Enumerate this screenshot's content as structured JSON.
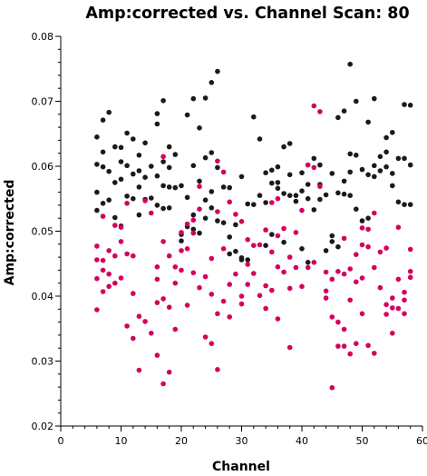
{
  "chart_data": {
    "type": "scatter",
    "title": "Amp:corrected vs. Channel Scan: 80",
    "xlabel": "Channel",
    "ylabel": "Amp:corrected",
    "xlim": [
      0,
      60
    ],
    "ylim": [
      0.02,
      0.08
    ],
    "x_ticks": [
      "0",
      "10",
      "20",
      "30",
      "40",
      "50",
      "60"
    ],
    "y_ticks": [
      "0.02",
      "0.03",
      "0.04",
      "0.05",
      "0.06",
      "0.07",
      "0.08"
    ],
    "grid": false,
    "colors": {
      "series_black": "#1a1a1a",
      "series_magenta": "#d4005f",
      "axis": "#000000"
    },
    "series": [
      {
        "color": "#1a1a1a",
        "points": [
          [
            6,
            0.0645
          ],
          [
            6,
            0.0603
          ],
          [
            6,
            0.056
          ],
          [
            6,
            0.0532
          ],
          [
            7,
            0.0622
          ],
          [
            7,
            0.0671
          ],
          [
            7,
            0.0599
          ],
          [
            7,
            0.0543
          ],
          [
            8,
            0.0683
          ],
          [
            8,
            0.0592
          ],
          [
            8,
            0.0548
          ],
          [
            9,
            0.063
          ],
          [
            9,
            0.0575
          ],
          [
            9,
            0.0521
          ],
          [
            10,
            0.0629
          ],
          [
            10,
            0.0607
          ],
          [
            10,
            0.058
          ],
          [
            10,
            0.0508
          ],
          [
            11,
            0.0651
          ],
          [
            11,
            0.0601
          ],
          [
            11,
            0.0554
          ],
          [
            12,
            0.0642
          ],
          [
            12,
            0.0588
          ],
          [
            12,
            0.055
          ],
          [
            13,
            0.0617
          ],
          [
            13,
            0.0593
          ],
          [
            13,
            0.0568
          ],
          [
            13,
            0.0525
          ],
          [
            14,
            0.0636
          ],
          [
            14,
            0.0583
          ],
          [
            14,
            0.0549
          ],
          [
            15,
            0.06
          ],
          [
            15,
            0.0551
          ],
          [
            16,
            0.0681
          ],
          [
            16,
            0.0665
          ],
          [
            16,
            0.0585
          ],
          [
            16,
            0.054
          ],
          [
            17,
            0.0701
          ],
          [
            17,
            0.0607
          ],
          [
            17,
            0.057
          ],
          [
            17,
            0.0535
          ],
          [
            18,
            0.063
          ],
          [
            18,
            0.0598
          ],
          [
            18,
            0.0568
          ],
          [
            18,
            0.0536
          ],
          [
            19,
            0.0618
          ],
          [
            19,
            0.0567
          ],
          [
            20,
            0.057
          ],
          [
            20,
            0.0495
          ],
          [
            20,
            0.0485
          ],
          [
            21,
            0.0679
          ],
          [
            21,
            0.0552
          ],
          [
            21,
            0.0507
          ],
          [
            22,
            0.0704
          ],
          [
            22,
            0.0601
          ],
          [
            22,
            0.0525
          ],
          [
            22,
            0.0503
          ],
          [
            23,
            0.0659
          ],
          [
            23,
            0.0577
          ],
          [
            23,
            0.0497
          ],
          [
            24,
            0.0705
          ],
          [
            24,
            0.0613
          ],
          [
            24,
            0.0548
          ],
          [
            24,
            0.052
          ],
          [
            25,
            0.0729
          ],
          [
            25,
            0.0621
          ],
          [
            25,
            0.0561
          ],
          [
            25,
            0.0536
          ],
          [
            26,
            0.0746
          ],
          [
            26,
            0.0598
          ],
          [
            26,
            0.0516
          ],
          [
            27,
            0.0568
          ],
          [
            27,
            0.0513
          ],
          [
            28,
            0.0567
          ],
          [
            28,
            0.0491
          ],
          [
            28,
            0.0465
          ],
          [
            29,
            0.051
          ],
          [
            29,
            0.0469
          ],
          [
            30,
            0.0584
          ],
          [
            30,
            0.0459
          ],
          [
            30,
            0.0456
          ],
          [
            31,
            0.0542
          ],
          [
            31,
            0.0456
          ],
          [
            32,
            0.0676
          ],
          [
            32,
            0.0541
          ],
          [
            33,
            0.0555
          ],
          [
            33,
            0.0642
          ],
          [
            34,
            0.059
          ],
          [
            34,
            0.0544
          ],
          [
            34,
            0.0478
          ],
          [
            35,
            0.0594
          ],
          [
            35,
            0.0574
          ],
          [
            35,
            0.0495
          ],
          [
            36,
            0.0599
          ],
          [
            36,
            0.0575
          ],
          [
            36,
            0.0566
          ],
          [
            37,
            0.063
          ],
          [
            37,
            0.0558
          ],
          [
            37,
            0.0483
          ],
          [
            38,
            0.0635
          ],
          [
            38,
            0.0587
          ],
          [
            38,
            0.0555
          ],
          [
            39,
            0.0555
          ],
          [
            39,
            0.0546
          ],
          [
            40,
            0.059
          ],
          [
            40,
            0.0562
          ],
          [
            40,
            0.0473
          ],
          [
            41,
            0.0572
          ],
          [
            41,
            0.055
          ],
          [
            41,
            0.0452
          ],
          [
            42,
            0.0612
          ],
          [
            42,
            0.0533
          ],
          [
            43,
            0.0602
          ],
          [
            43,
            0.0572
          ],
          [
            43,
            0.0549
          ],
          [
            44,
            0.0556
          ],
          [
            44,
            0.047
          ],
          [
            45,
            0.0589
          ],
          [
            45,
            0.0493
          ],
          [
            45,
            0.0484
          ],
          [
            46,
            0.0675
          ],
          [
            46,
            0.0559
          ],
          [
            46,
            0.0476
          ],
          [
            47,
            0.0685
          ],
          [
            47,
            0.0577
          ],
          [
            47,
            0.0557
          ],
          [
            48,
            0.0757
          ],
          [
            48,
            0.0619
          ],
          [
            48,
            0.0591
          ],
          [
            48,
            0.0555
          ],
          [
            49,
            0.07
          ],
          [
            49,
            0.0617
          ],
          [
            49,
            0.0534
          ],
          [
            50,
            0.0595
          ],
          [
            50,
            0.0516
          ],
          [
            51,
            0.0668
          ],
          [
            51,
            0.0587
          ],
          [
            51,
            0.052
          ],
          [
            52,
            0.0704
          ],
          [
            52,
            0.0601
          ],
          [
            52,
            0.0584
          ],
          [
            53,
            0.0615
          ],
          [
            53,
            0.0593
          ],
          [
            54,
            0.0644
          ],
          [
            54,
            0.0622
          ],
          [
            54,
            0.0599
          ],
          [
            55,
            0.0652
          ],
          [
            55,
            0.0589
          ],
          [
            55,
            0.057
          ],
          [
            56,
            0.0612
          ],
          [
            56,
            0.0545
          ],
          [
            57,
            0.0695
          ],
          [
            57,
            0.0612
          ],
          [
            57,
            0.0541
          ],
          [
            58,
            0.0694
          ],
          [
            58,
            0.0602
          ],
          [
            58,
            0.0541
          ]
        ]
      },
      {
        "color": "#d4005f",
        "points": [
          [
            6,
            0.0477
          ],
          [
            6,
            0.0456
          ],
          [
            6,
            0.0427
          ],
          [
            6,
            0.0379
          ],
          [
            7,
            0.0523
          ],
          [
            7,
            0.0455
          ],
          [
            7,
            0.044
          ],
          [
            7,
            0.0407
          ],
          [
            8,
            0.047
          ],
          [
            8,
            0.0434
          ],
          [
            8,
            0.0415
          ],
          [
            9,
            0.0509
          ],
          [
            9,
            0.0462
          ],
          [
            9,
            0.042
          ],
          [
            10,
            0.0506
          ],
          [
            10,
            0.0484
          ],
          [
            10,
            0.0428
          ],
          [
            11,
            0.0543
          ],
          [
            11,
            0.0465
          ],
          [
            11,
            0.0354
          ],
          [
            12,
            0.0462
          ],
          [
            12,
            0.0404
          ],
          [
            12,
            0.0335
          ],
          [
            13,
            0.0369
          ],
          [
            13,
            0.0286
          ],
          [
            14,
            0.0547
          ],
          [
            14,
            0.0361
          ],
          [
            15,
            0.0528
          ],
          [
            15,
            0.0343
          ],
          [
            16,
            0.0445
          ],
          [
            16,
            0.0426
          ],
          [
            16,
            0.039
          ],
          [
            16,
            0.0309
          ],
          [
            17,
            0.0615
          ],
          [
            17,
            0.0484
          ],
          [
            17,
            0.0396
          ],
          [
            17,
            0.0265
          ],
          [
            18,
            0.0462
          ],
          [
            18,
            0.0383
          ],
          [
            18,
            0.0283
          ],
          [
            19,
            0.0445
          ],
          [
            19,
            0.042
          ],
          [
            19,
            0.0349
          ],
          [
            20,
            0.0498
          ],
          [
            20,
            0.047
          ],
          [
            20,
            0.044
          ],
          [
            21,
            0.0511
          ],
          [
            21,
            0.0473
          ],
          [
            21,
            0.0386
          ],
          [
            22,
            0.0517
          ],
          [
            22,
            0.0497
          ],
          [
            22,
            0.0436
          ],
          [
            23,
            0.0569
          ],
          [
            23,
            0.0534
          ],
          [
            23,
            0.0413
          ],
          [
            24,
            0.043
          ],
          [
            24,
            0.0337
          ],
          [
            25,
            0.0458
          ],
          [
            25,
            0.0403
          ],
          [
            25,
            0.0327
          ],
          [
            26,
            0.0608
          ],
          [
            26,
            0.053
          ],
          [
            26,
            0.0373
          ],
          [
            26,
            0.0287
          ],
          [
            27,
            0.0591
          ],
          [
            27,
            0.0473
          ],
          [
            27,
            0.0392
          ],
          [
            28,
            0.0545
          ],
          [
            28,
            0.0418
          ],
          [
            28,
            0.0368
          ],
          [
            29,
            0.0526
          ],
          [
            29,
            0.0434
          ],
          [
            30,
            0.0515
          ],
          [
            30,
            0.04
          ],
          [
            30,
            0.0388
          ],
          [
            31,
            0.0487
          ],
          [
            31,
            0.0449
          ],
          [
            31,
            0.0418
          ],
          [
            32,
            0.0478
          ],
          [
            32,
            0.0435
          ],
          [
            33,
            0.0479
          ],
          [
            33,
            0.0401
          ],
          [
            34,
            0.0502
          ],
          [
            34,
            0.0416
          ],
          [
            34,
            0.0381
          ],
          [
            35,
            0.0544
          ],
          [
            35,
            0.0468
          ],
          [
            35,
            0.0409
          ],
          [
            36,
            0.055
          ],
          [
            36,
            0.0493
          ],
          [
            36,
            0.0445
          ],
          [
            36,
            0.0365
          ],
          [
            37,
            0.0504
          ],
          [
            37,
            0.0437
          ],
          [
            38,
            0.046
          ],
          [
            38,
            0.0412
          ],
          [
            38,
            0.0321
          ],
          [
            39,
            0.0498
          ],
          [
            39,
            0.0444
          ],
          [
            40,
            0.0532
          ],
          [
            40,
            0.0415
          ],
          [
            41,
            0.0602
          ],
          [
            41,
            0.0444
          ],
          [
            42,
            0.0693
          ],
          [
            42,
            0.0598
          ],
          [
            42,
            0.0452
          ],
          [
            43,
            0.0684
          ],
          [
            43,
            0.0569
          ],
          [
            44,
            0.0437
          ],
          [
            44,
            0.0408
          ],
          [
            44,
            0.0397
          ],
          [
            45,
            0.0426
          ],
          [
            45,
            0.0368
          ],
          [
            45,
            0.0259
          ],
          [
            46,
            0.0438
          ],
          [
            46,
            0.036
          ],
          [
            46,
            0.0323
          ],
          [
            47,
            0.0489
          ],
          [
            47,
            0.0434
          ],
          [
            47,
            0.0349
          ],
          [
            47,
            0.0323
          ],
          [
            48,
            0.0442
          ],
          [
            48,
            0.0394
          ],
          [
            48,
            0.0311
          ],
          [
            49,
            0.0464
          ],
          [
            49,
            0.0422
          ],
          [
            49,
            0.0327
          ],
          [
            50,
            0.0505
          ],
          [
            50,
            0.0479
          ],
          [
            50,
            0.0428
          ],
          [
            50,
            0.0373
          ],
          [
            51,
            0.0503
          ],
          [
            51,
            0.0476
          ],
          [
            51,
            0.0324
          ],
          [
            52,
            0.0528
          ],
          [
            52,
            0.0444
          ],
          [
            52,
            0.0312
          ],
          [
            53,
            0.0468
          ],
          [
            53,
            0.0413
          ],
          [
            54,
            0.0474
          ],
          [
            54,
            0.0387
          ],
          [
            54,
            0.0372
          ],
          [
            55,
            0.0397
          ],
          [
            55,
            0.0382
          ],
          [
            55,
            0.0343
          ],
          [
            56,
            0.0506
          ],
          [
            56,
            0.0426
          ],
          [
            56,
            0.0381
          ],
          [
            57,
            0.0406
          ],
          [
            57,
            0.0394
          ],
          [
            57,
            0.0373
          ],
          [
            58,
            0.0472
          ],
          [
            58,
            0.0438
          ],
          [
            58,
            0.0429
          ]
        ]
      }
    ]
  }
}
